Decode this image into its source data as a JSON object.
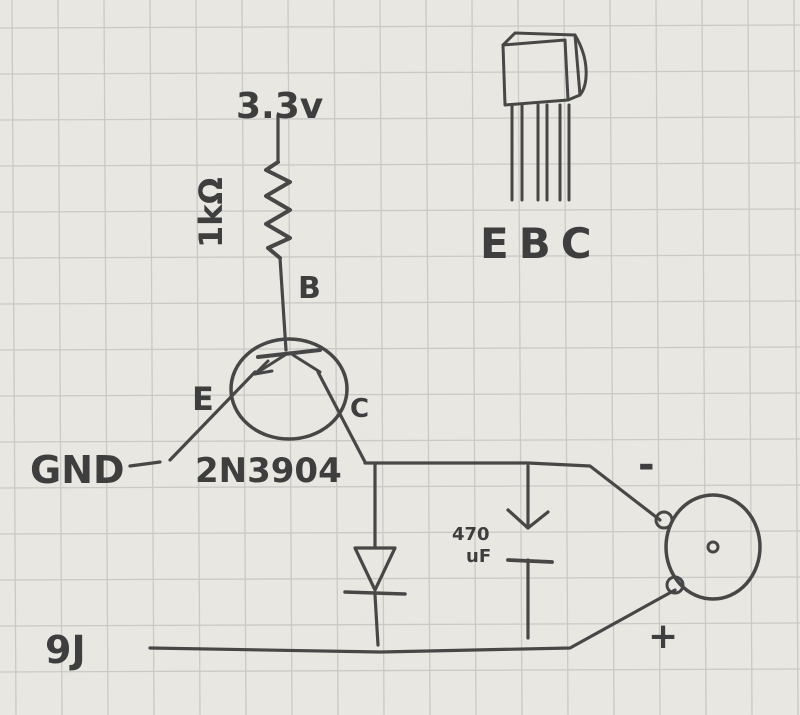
{
  "labels": {
    "supply": "3.3v",
    "resistor": "1kΩ",
    "base": "B",
    "emitter": "E",
    "collector": "C",
    "gnd": "GND",
    "transistor_part": "2N3904",
    "capacitor": [
      "470",
      "uF"
    ],
    "battery": "9J",
    "minus": "-",
    "plus": "+",
    "pinout": "EBC"
  },
  "colors": {
    "paper": "#e9e7e2",
    "grid": "#c9c9c6",
    "ink": "#474747"
  },
  "icons": {
    "resistor": "resistor-zigzag-icon",
    "transistor": "npn-transistor-icon",
    "diode": "diode-icon",
    "capacitor": "capacitor-icon",
    "motor": "motor-icon",
    "package": "to92-package-icon"
  }
}
